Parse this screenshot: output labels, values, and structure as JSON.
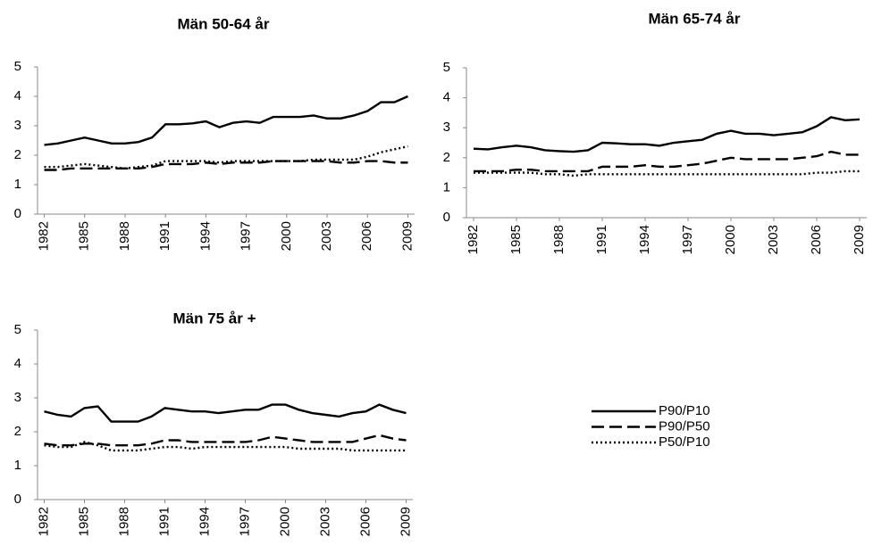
{
  "chart_data": [
    {
      "type": "line",
      "title": "Män 50-64 år",
      "x": [
        1982,
        1983,
        1984,
        1985,
        1986,
        1987,
        1988,
        1989,
        1990,
        1991,
        1992,
        1993,
        1994,
        1995,
        1996,
        1997,
        1998,
        1999,
        2000,
        2001,
        2002,
        2003,
        2004,
        2005,
        2006,
        2007,
        2008,
        2009
      ],
      "xlim": [
        1981.5,
        2009.5
      ],
      "xticks": [
        1982,
        1985,
        1988,
        1991,
        1994,
        1997,
        2000,
        2003,
        2006,
        2009
      ],
      "ylim": [
        0,
        5
      ],
      "yticks": [
        0,
        1,
        2,
        3,
        4,
        5
      ],
      "series": [
        {
          "name": "P90/P10",
          "color": "#000000",
          "dash": "solid",
          "values": [
            2.35,
            2.4,
            2.5,
            2.6,
            2.5,
            2.4,
            2.4,
            2.45,
            2.6,
            3.05,
            3.05,
            3.08,
            3.15,
            2.95,
            3.1,
            3.15,
            3.1,
            3.3,
            3.3,
            3.3,
            3.35,
            3.25,
            3.25,
            3.35,
            3.5,
            3.8,
            3.8,
            4.0
          ]
        },
        {
          "name": "P90/P50",
          "color": "#000000",
          "dash": "dashed",
          "values": [
            1.5,
            1.5,
            1.55,
            1.55,
            1.55,
            1.55,
            1.55,
            1.55,
            1.6,
            1.7,
            1.7,
            1.7,
            1.75,
            1.7,
            1.75,
            1.75,
            1.75,
            1.8,
            1.8,
            1.8,
            1.8,
            1.8,
            1.75,
            1.75,
            1.8,
            1.8,
            1.75,
            1.75
          ]
        },
        {
          "name": "P50/P10",
          "color": "#000000",
          "dash": "dotted",
          "values": [
            1.6,
            1.6,
            1.65,
            1.7,
            1.65,
            1.6,
            1.55,
            1.6,
            1.65,
            1.8,
            1.8,
            1.8,
            1.8,
            1.75,
            1.8,
            1.8,
            1.8,
            1.8,
            1.8,
            1.8,
            1.85,
            1.85,
            1.85,
            1.85,
            1.95,
            2.1,
            2.2,
            2.3
          ]
        }
      ]
    },
    {
      "type": "line",
      "title": "Män 65-74 år",
      "x": [
        1982,
        1983,
        1984,
        1985,
        1986,
        1987,
        1988,
        1989,
        1990,
        1991,
        1992,
        1993,
        1994,
        1995,
        1996,
        1997,
        1998,
        1999,
        2000,
        2001,
        2002,
        2003,
        2004,
        2005,
        2006,
        2007,
        2008,
        2009
      ],
      "xlim": [
        1981.5,
        2009.5
      ],
      "xticks": [
        1982,
        1985,
        1988,
        1991,
        1994,
        1997,
        2000,
        2003,
        2006,
        2009
      ],
      "ylim": [
        0,
        5
      ],
      "yticks": [
        0,
        1,
        2,
        3,
        4,
        5
      ],
      "series": [
        {
          "name": "P90/P10",
          "color": "#000000",
          "dash": "solid",
          "values": [
            2.3,
            2.28,
            2.35,
            2.4,
            2.35,
            2.25,
            2.22,
            2.2,
            2.25,
            2.5,
            2.48,
            2.45,
            2.45,
            2.4,
            2.5,
            2.55,
            2.6,
            2.8,
            2.9,
            2.8,
            2.8,
            2.75,
            2.8,
            2.85,
            3.05,
            3.35,
            3.25,
            3.28
          ]
        },
        {
          "name": "P90/P50",
          "color": "#000000",
          "dash": "dashed",
          "values": [
            1.55,
            1.55,
            1.55,
            1.6,
            1.6,
            1.55,
            1.55,
            1.55,
            1.55,
            1.7,
            1.7,
            1.7,
            1.75,
            1.7,
            1.7,
            1.75,
            1.8,
            1.9,
            2.0,
            1.95,
            1.95,
            1.95,
            1.95,
            2.0,
            2.05,
            2.2,
            2.1,
            2.1
          ]
        },
        {
          "name": "P50/P10",
          "color": "#000000",
          "dash": "dotted",
          "values": [
            1.5,
            1.5,
            1.5,
            1.5,
            1.5,
            1.45,
            1.45,
            1.4,
            1.45,
            1.45,
            1.45,
            1.45,
            1.45,
            1.45,
            1.45,
            1.45,
            1.45,
            1.45,
            1.45,
            1.45,
            1.45,
            1.45,
            1.45,
            1.45,
            1.5,
            1.5,
            1.55,
            1.55
          ]
        }
      ]
    },
    {
      "type": "line",
      "title": "Män 75 år +",
      "x": [
        1982,
        1983,
        1984,
        1985,
        1986,
        1987,
        1988,
        1989,
        1990,
        1991,
        1992,
        1993,
        1994,
        1995,
        1996,
        1997,
        1998,
        1999,
        2000,
        2001,
        2002,
        2003,
        2004,
        2005,
        2006,
        2007,
        2008,
        2009
      ],
      "xlim": [
        1981.5,
        2009.5
      ],
      "xticks": [
        1982,
        1985,
        1988,
        1991,
        1994,
        1997,
        2000,
        2003,
        2006,
        2009
      ],
      "ylim": [
        0,
        5
      ],
      "yticks": [
        0,
        1,
        2,
        3,
        4,
        5
      ],
      "series": [
        {
          "name": "P90/P10",
          "color": "#000000",
          "dash": "solid",
          "values": [
            2.6,
            2.5,
            2.45,
            2.7,
            2.75,
            2.3,
            2.3,
            2.3,
            2.45,
            2.7,
            2.65,
            2.6,
            2.6,
            2.55,
            2.6,
            2.65,
            2.65,
            2.8,
            2.8,
            2.65,
            2.55,
            2.5,
            2.45,
            2.55,
            2.6,
            2.8,
            2.65,
            2.55
          ]
        },
        {
          "name": "P90/P50",
          "color": "#000000",
          "dash": "dashed",
          "values": [
            1.65,
            1.6,
            1.6,
            1.65,
            1.65,
            1.6,
            1.6,
            1.6,
            1.65,
            1.75,
            1.75,
            1.7,
            1.7,
            1.7,
            1.7,
            1.7,
            1.75,
            1.85,
            1.8,
            1.75,
            1.7,
            1.7,
            1.7,
            1.7,
            1.8,
            1.9,
            1.8,
            1.75
          ]
        },
        {
          "name": "P50/P10",
          "color": "#000000",
          "dash": "dotted",
          "values": [
            1.6,
            1.55,
            1.55,
            1.7,
            1.6,
            1.45,
            1.45,
            1.45,
            1.5,
            1.55,
            1.55,
            1.5,
            1.55,
            1.55,
            1.55,
            1.55,
            1.55,
            1.55,
            1.55,
            1.5,
            1.5,
            1.5,
            1.5,
            1.45,
            1.45,
            1.45,
            1.45,
            1.45
          ]
        }
      ]
    }
  ]
}
